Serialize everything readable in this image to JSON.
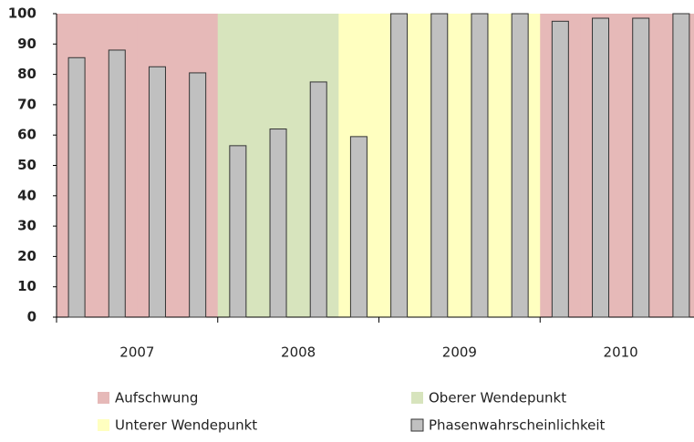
{
  "chart_data": {
    "type": "bar",
    "categories": [
      null,
      null,
      null,
      null,
      null,
      null,
      null,
      null,
      null,
      null,
      null,
      null,
      null,
      null,
      null,
      null
    ],
    "groups": [
      "2007",
      "2008",
      "2009",
      "2010"
    ],
    "phases": [
      "Aufschwung",
      "Aufschwung",
      "Aufschwung",
      "Aufschwung",
      "Oberer Wendepunkt",
      "Oberer Wendepunkt",
      "Oberer Wendepunkt",
      "Unterer Wendepunkt",
      "Unterer Wendepunkt",
      "Unterer Wendepunkt",
      "Unterer Wendepunkt",
      "Unterer Wendepunkt",
      "Aufschwung",
      "Aufschwung",
      "Aufschwung",
      "Aufschwung"
    ],
    "phase_legend": [
      {
        "name": "Aufschwung",
        "color": "#e6b9b8"
      },
      {
        "name": "Oberer Wendepunkt",
        "color": "#d7e4bd"
      },
      {
        "name": "Unterer Wendepunkt",
        "color": "#ffffc0"
      }
    ],
    "series": [
      {
        "name": "Phasenwahrscheinlichkeit",
        "color": "#c0c0c0",
        "values": [
          85.5,
          88,
          82.5,
          80.5,
          56.5,
          62,
          77.5,
          59.5,
          100,
          100,
          100,
          100,
          97.5,
          98.5,
          98.5,
          100
        ]
      }
    ],
    "ylim": [
      0,
      100
    ],
    "yticks": [
      0,
      10,
      20,
      30,
      40,
      50,
      60,
      70,
      80,
      90,
      100
    ]
  }
}
